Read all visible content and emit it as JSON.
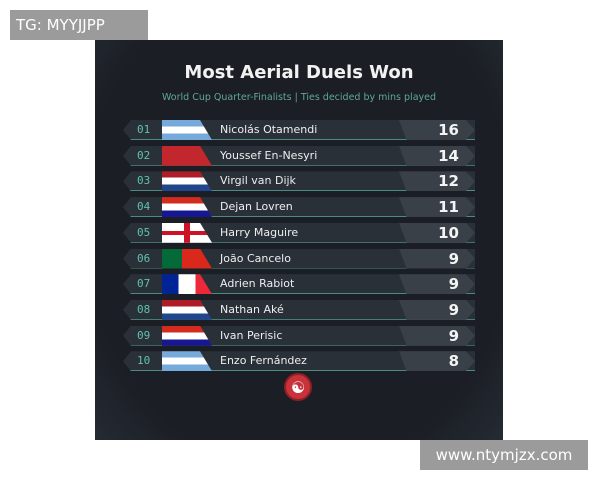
{
  "watermarks": {
    "top_left": "TG: MYYJJPP",
    "bottom_right": "www.ntymjzx.com"
  },
  "header": {
    "title": "Most Aerial Duels Won",
    "subtitle": "World Cup Quarter-Finalists | Ties decided by mins played"
  },
  "rows": [
    {
      "rank": "01",
      "name": "Nicolás Otamendi",
      "value": "16",
      "flag": "argentina"
    },
    {
      "rank": "02",
      "name": "Youssef En-Nesyri",
      "value": "14",
      "flag": "morocco"
    },
    {
      "rank": "03",
      "name": "Virgil van Dijk",
      "value": "12",
      "flag": "netherlands"
    },
    {
      "rank": "04",
      "name": "Dejan Lovren",
      "value": "11",
      "flag": "croatia"
    },
    {
      "rank": "05",
      "name": "Harry Maguire",
      "value": "10",
      "flag": "england"
    },
    {
      "rank": "06",
      "name": "João Cancelo",
      "value": "9",
      "flag": "portugal"
    },
    {
      "rank": "07",
      "name": "Adrien Rabiot",
      "value": "9",
      "flag": "france"
    },
    {
      "rank": "08",
      "name": "Nathan Aké",
      "value": "9",
      "flag": "netherlands"
    },
    {
      "rank": "09",
      "name": "Ivan Perisic",
      "value": "9",
      "flag": "croatia"
    },
    {
      "rank": "10",
      "name": "Enzo Fernández",
      "value": "8",
      "flag": "argentina"
    }
  ],
  "footer": {
    "logo_icon": "brand-logo-icon"
  }
}
